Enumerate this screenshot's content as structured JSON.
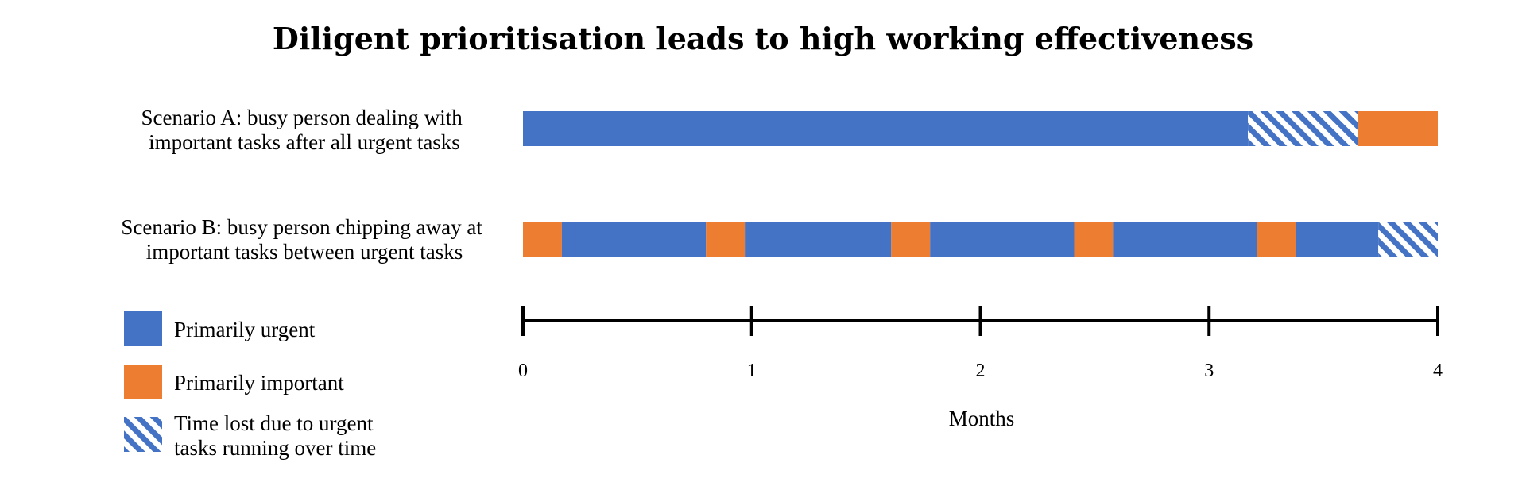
{
  "chart_data": {
    "type": "bar",
    "orientation": "horizontal-stacked-timeline",
    "title": "Diligent prioritisation leads to high working effectiveness",
    "xlabel": "Months",
    "xlim": [
      0,
      4
    ],
    "xticks": [
      "0",
      "1",
      "2",
      "3",
      "4"
    ],
    "colors": {
      "urgent": "#4472C4",
      "important": "#ED7D31",
      "lost": "#4472C4"
    },
    "legend": {
      "position": "bottom-left",
      "entries": [
        {
          "key": "urgent",
          "label": "Primarily urgent",
          "style": "solid"
        },
        {
          "key": "important",
          "label": "Primarily important",
          "style": "solid"
        },
        {
          "key": "lost",
          "label_lines": [
            "Time lost due to urgent",
            "tasks running over time"
          ],
          "style": "hatched"
        }
      ]
    },
    "scenarios": [
      {
        "label_lines": [
          "Scenario A: busy person dealing with",
          "important tasks after all urgent tasks"
        ],
        "segments": [
          {
            "kind": "urgent",
            "start": 0,
            "end": 3.17
          },
          {
            "kind": "lost",
            "start": 3.17,
            "end": 3.65
          },
          {
            "kind": "important",
            "start": 3.65,
            "end": 4.0
          }
        ]
      },
      {
        "label_lines": [
          "Scenario B: busy person chipping away at",
          "important tasks between urgent tasks"
        ],
        "segments": [
          {
            "kind": "important",
            "start": 0,
            "end": 0.17
          },
          {
            "kind": "urgent",
            "start": 0.17,
            "end": 0.8
          },
          {
            "kind": "important",
            "start": 0.8,
            "end": 0.97
          },
          {
            "kind": "urgent",
            "start": 0.97,
            "end": 1.61
          },
          {
            "kind": "important",
            "start": 1.61,
            "end": 1.78
          },
          {
            "kind": "urgent",
            "start": 1.78,
            "end": 2.41
          },
          {
            "kind": "important",
            "start": 2.41,
            "end": 2.58
          },
          {
            "kind": "urgent",
            "start": 2.58,
            "end": 3.21
          },
          {
            "kind": "important",
            "start": 3.21,
            "end": 3.38
          },
          {
            "kind": "urgent",
            "start": 3.38,
            "end": 3.74
          },
          {
            "kind": "lost",
            "start": 3.74,
            "end": 4.0
          }
        ]
      }
    ]
  }
}
